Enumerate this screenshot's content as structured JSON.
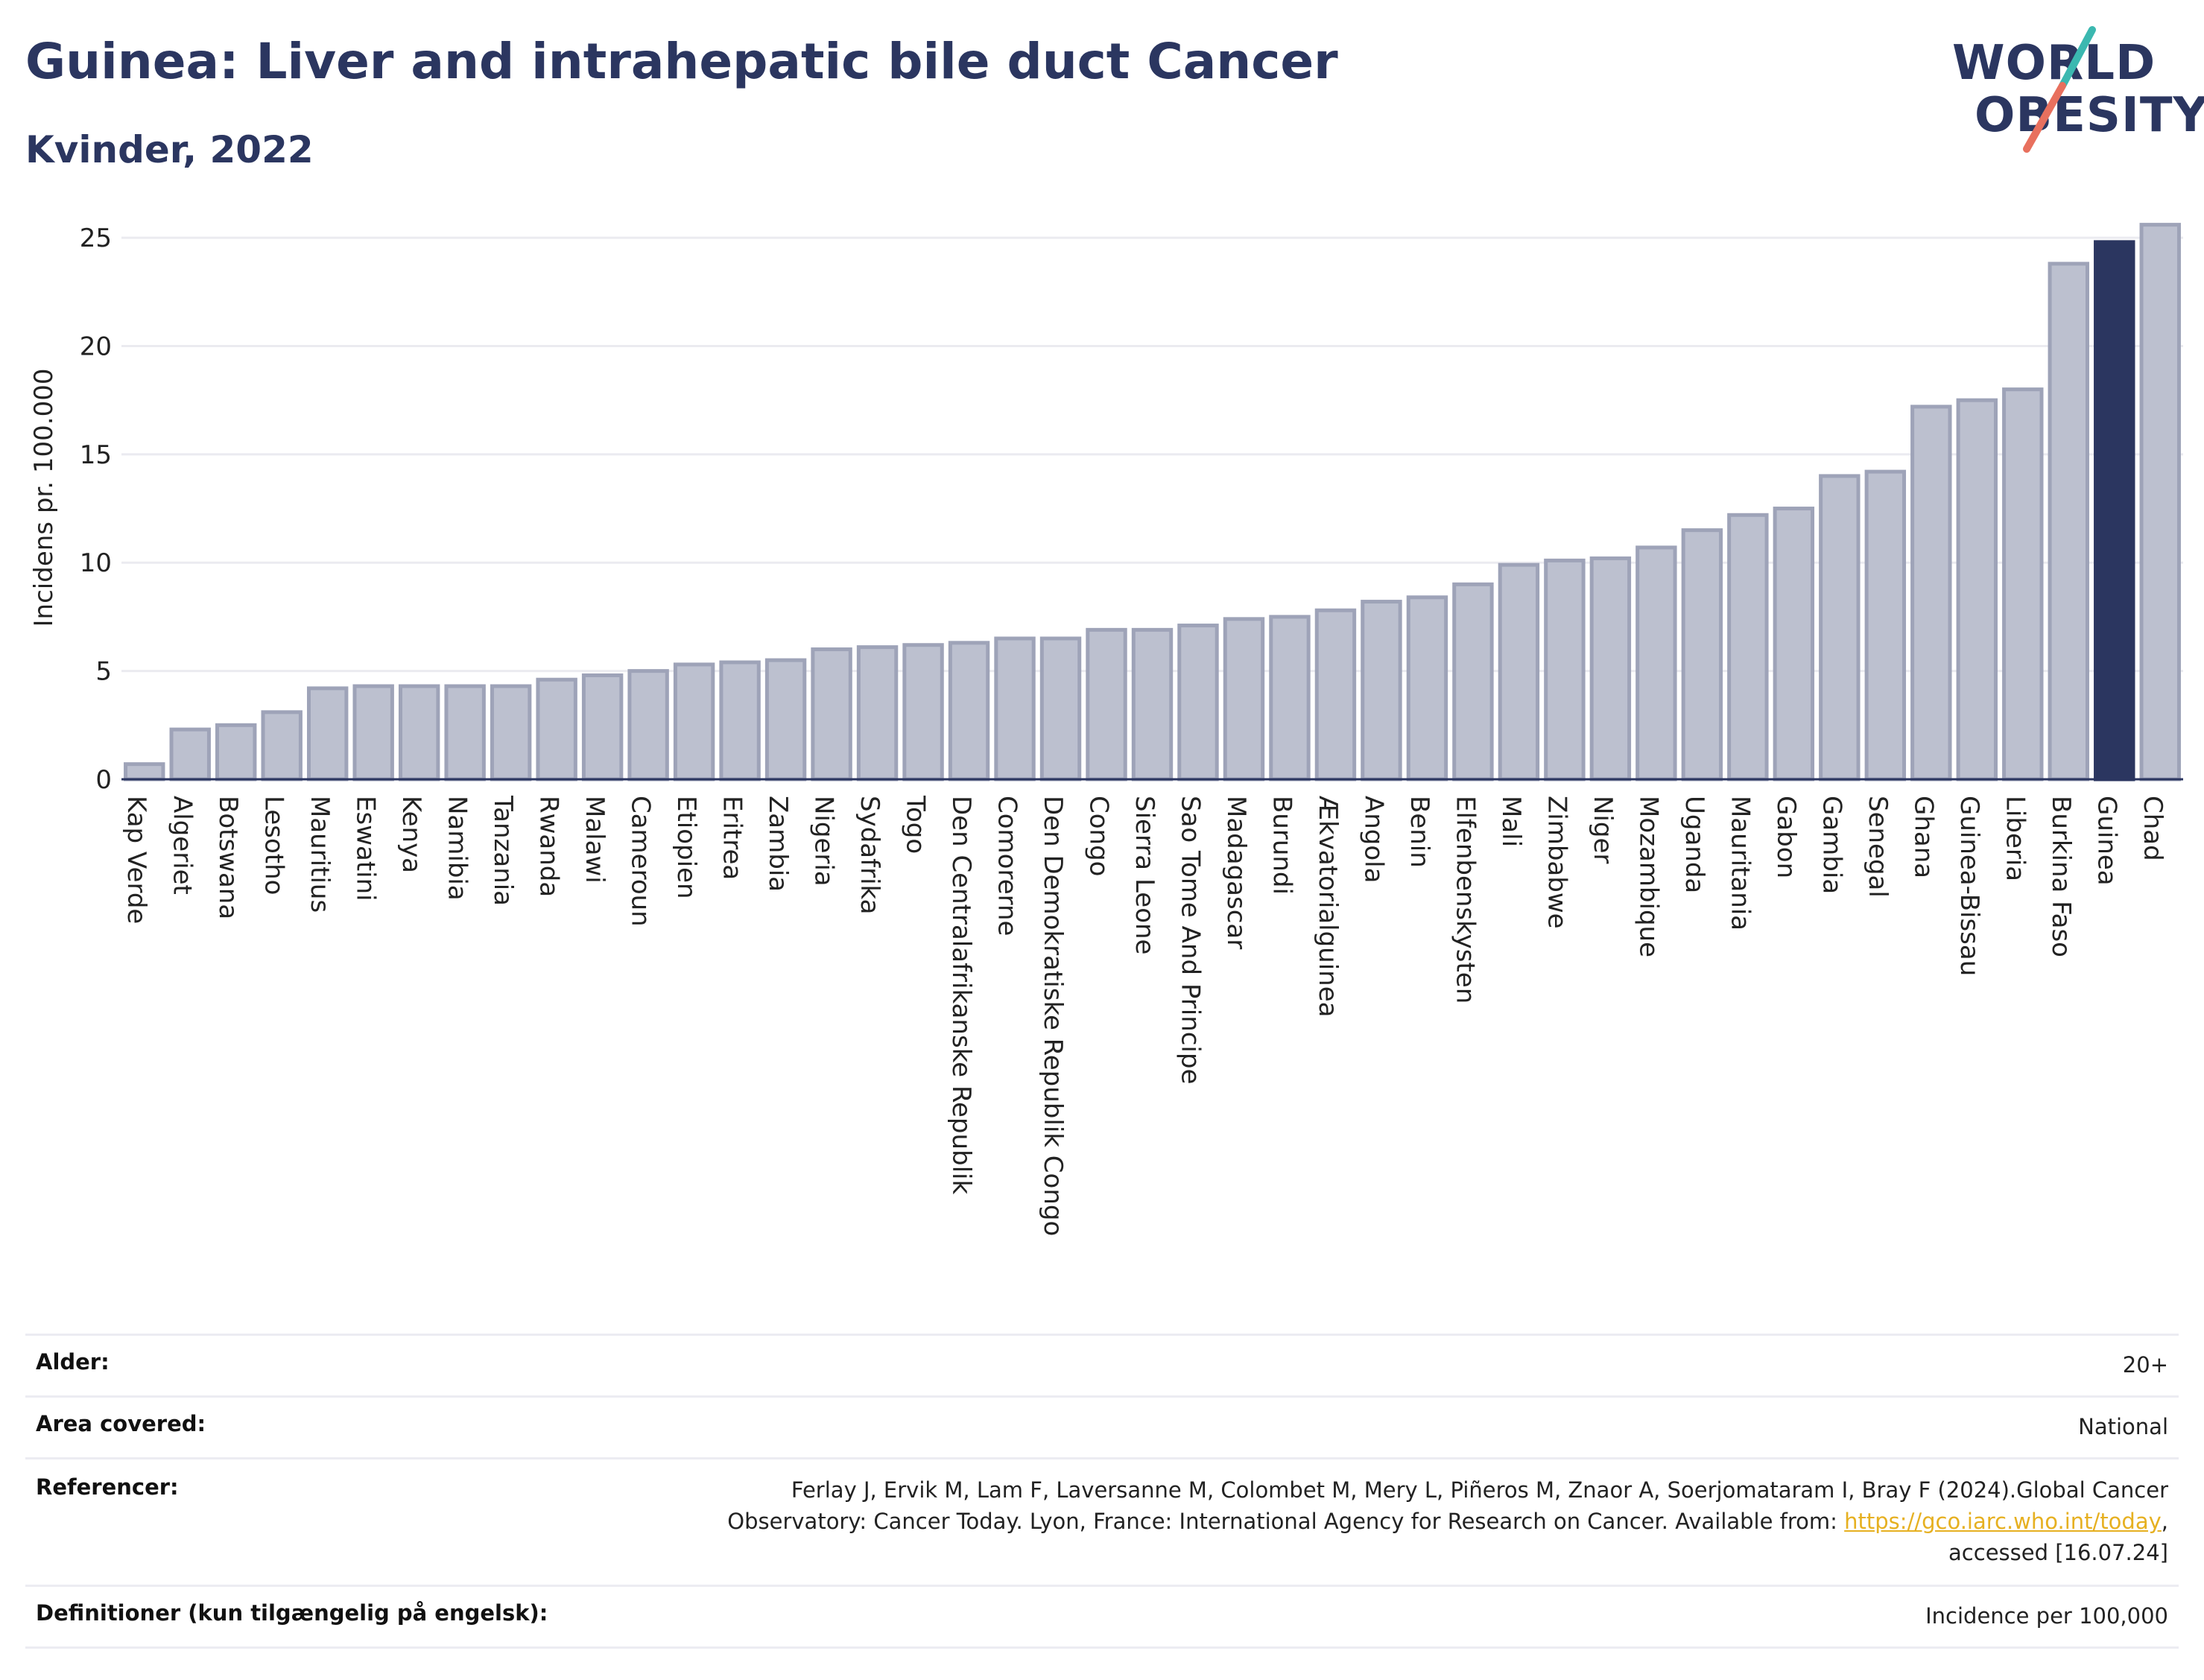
{
  "title": "Guinea: Liver and intrahepatic bile duct Cancer",
  "subtitle": "Kvinder, 2022",
  "logo": {
    "line1": "WORLD",
    "line2": "OBESITY"
  },
  "colors": {
    "bar": "#bcc0cf",
    "bar_stroke": "#9ea3b8",
    "highlight": "#2b3660",
    "title": "#2b3660"
  },
  "chart_data": {
    "type": "bar",
    "ylabel": "Incidens pr. 100.000",
    "ylim": [
      0,
      26
    ],
    "yticks": [
      0,
      5,
      10,
      15,
      20,
      25
    ],
    "grid": true,
    "highlight": "Guinea",
    "categories": [
      "Kap Verde",
      "Algeriet",
      "Botswana",
      "Lesotho",
      "Mauritius",
      "Eswatini",
      "Kenya",
      "Namibia",
      "Tanzania",
      "Rwanda",
      "Malawi",
      "Cameroun",
      "Etiopien",
      "Eritrea",
      "Zambia",
      "Nigeria",
      "Sydafrika",
      "Togo",
      "Den Centralafrikanske Republik",
      "Comorerne",
      "Den Demokratiske Republik Congo",
      "Congo",
      "Sierra Leone",
      "Sao Tome And Principe",
      "Madagascar",
      "Burundi",
      "Ækvatorialguinea",
      "Angola",
      "Benin",
      "Elfenbenskysten",
      "Mali",
      "Zimbabwe",
      "Niger",
      "Mozambique",
      "Uganda",
      "Mauritania",
      "Gabon",
      "Gambia",
      "Senegal",
      "Ghana",
      "Guinea-Bissau",
      "Liberia",
      "Burkina Faso",
      "Guinea",
      "Chad"
    ],
    "values": [
      0.7,
      2.3,
      2.5,
      3.1,
      4.2,
      4.3,
      4.3,
      4.3,
      4.3,
      4.6,
      4.8,
      5.0,
      5.3,
      5.4,
      5.5,
      6.0,
      6.1,
      6.2,
      6.3,
      6.5,
      6.5,
      6.9,
      6.9,
      7.1,
      7.4,
      7.5,
      7.8,
      8.2,
      8.4,
      9.0,
      9.9,
      10.1,
      10.2,
      10.7,
      11.5,
      12.2,
      12.5,
      14.0,
      14.2,
      17.2,
      17.5,
      18.0,
      23.8,
      24.8,
      25.6
    ]
  },
  "table": [
    {
      "label": "Alder:",
      "value": "20+"
    },
    {
      "label": "Area covered:",
      "value": "National"
    },
    {
      "label": "Referencer:",
      "value_lines": [
        "Ferlay J, Ervik M, Lam F, Laversanne M, Colombet M, Mery L, Piñeros M, Znaor A, Soerjomataram I, Bray F (2024).Global Cancer",
        "Observatory: Cancer Today. Lyon, France: International Agency for Research on Cancer. Available from: "
      ],
      "link": "https://gco.iarc.who.int/today",
      "after_link": ",",
      "last_line": "accessed [16.07.24]"
    },
    {
      "label": "Definitioner (kun tilgængelig på engelsk):",
      "value": "Incidence per 100,000"
    }
  ]
}
